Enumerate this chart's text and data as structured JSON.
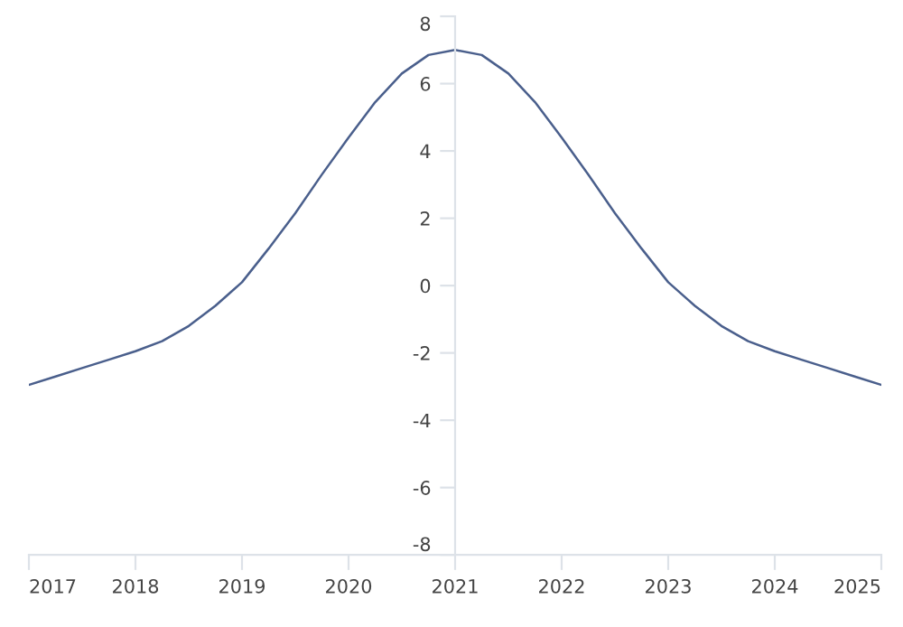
{
  "chart_data": {
    "type": "line",
    "x": [
      2017,
      2017.25,
      2017.5,
      2017.75,
      2018,
      2018.25,
      2018.5,
      2018.75,
      2019,
      2019.25,
      2019.5,
      2019.75,
      2020,
      2020.25,
      2020.5,
      2020.75,
      2021,
      2021.25,
      2021.5,
      2021.75,
      2022,
      2022.25,
      2022.5,
      2022.75,
      2023,
      2023.25,
      2023.5,
      2023.75,
      2024,
      2024.25,
      2024.5,
      2024.75,
      2025
    ],
    "series": [
      {
        "color": "#4a5f8c",
        "values": [
          -2.95,
          -2.7,
          -2.45,
          -2.2,
          -1.95,
          -1.65,
          -1.2,
          -0.6,
          0.1,
          1.1,
          2.15,
          3.3,
          4.4,
          5.45,
          6.3,
          6.85,
          7,
          6.85,
          6.3,
          5.45,
          4.4,
          3.3,
          2.15,
          1.1,
          0.1,
          -0.6,
          -1.2,
          -1.65,
          -1.95,
          -2.2,
          -2.45,
          -2.7,
          -2.95
        ]
      }
    ],
    "xlim": [
      2017,
      2025
    ],
    "xticks": [
      2017,
      2018,
      2019,
      2020,
      2021,
      2022,
      2023,
      2024,
      2025
    ],
    "ylim": [
      -8,
      8
    ],
    "yticks": [
      -8,
      -6,
      -4,
      -2,
      0,
      2,
      4,
      6,
      8
    ],
    "grid": false,
    "legend": false,
    "marker": "none",
    "line_style": "solid"
  }
}
